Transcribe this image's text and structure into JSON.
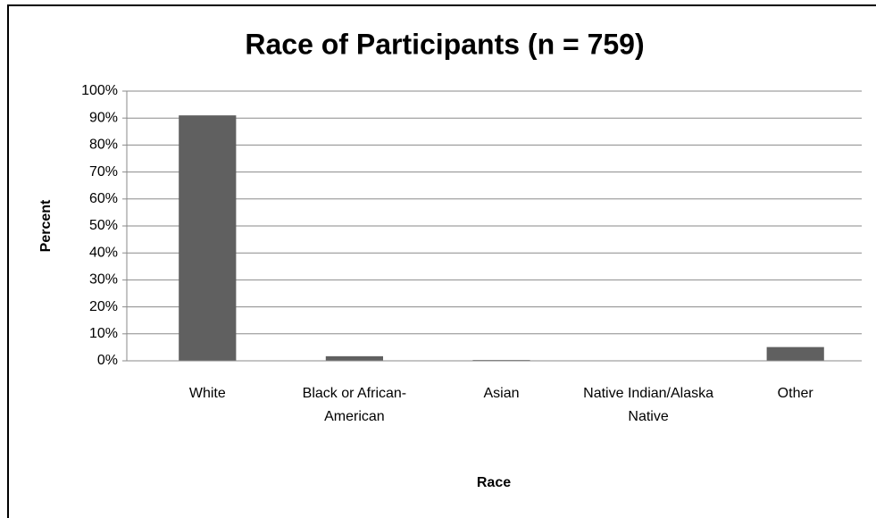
{
  "chart_data": {
    "type": "bar",
    "title": "Race of Participants (n = 759)",
    "x_label": "Race",
    "y_label": "Percent",
    "categories": [
      "White",
      "Black or African-American",
      "Asian",
      "Native Indian/Alaska Native",
      "Other"
    ],
    "values": [
      91,
      1.7,
      0.3,
      0,
      5.1
    ],
    "color": "#606060",
    "ylim": [
      0,
      100
    ],
    "yticks": [
      {
        "value": 0,
        "label": "0%"
      },
      {
        "value": 10,
        "label": "10%"
      },
      {
        "value": 20,
        "label": "20%"
      },
      {
        "value": 30,
        "label": "30%"
      },
      {
        "value": 40,
        "label": "40%"
      },
      {
        "value": 50,
        "label": "50%"
      },
      {
        "value": 60,
        "label": "60%"
      },
      {
        "value": 70,
        "label": "70%"
      },
      {
        "value": 80,
        "label": "80%"
      },
      {
        "value": 90,
        "label": "90%"
      },
      {
        "value": 100,
        "label": "100%"
      }
    ],
    "grid": true
  }
}
